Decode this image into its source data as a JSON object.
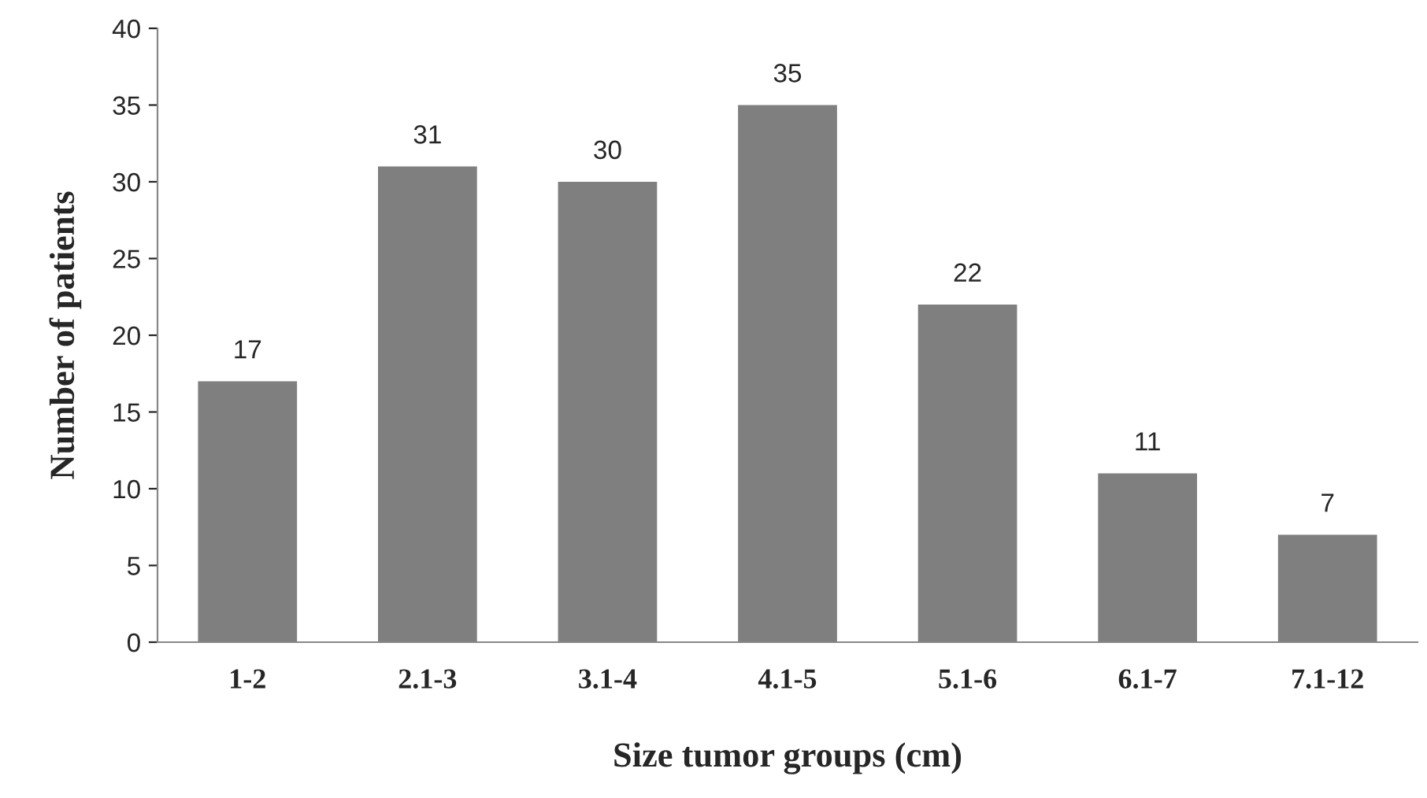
{
  "chart_data": {
    "type": "bar",
    "xlabel": "Size tumor groups (cm)",
    "ylabel": "Number of patients",
    "categories": [
      "1-2",
      "2.1-3",
      "3.1-4",
      "4.1-5",
      "5.1-6",
      "6.1-7",
      "7.1-12"
    ],
    "values": [
      17,
      31,
      30,
      35,
      22,
      11,
      7
    ],
    "color": "#7f7f7f",
    "ylim": [
      0,
      40
    ],
    "yticks": [
      0,
      5,
      10,
      15,
      20,
      25,
      30,
      35,
      40
    ],
    "grid": false,
    "data_labels": true
  }
}
